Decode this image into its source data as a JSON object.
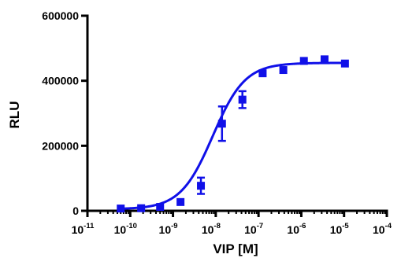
{
  "chart_data": {
    "type": "scatter",
    "xlabel": "VIP [M]",
    "ylabel": "RLU",
    "x_scale": "log10",
    "xlim": [
      1e-11,
      0.0001
    ],
    "ylim": [
      0,
      600000
    ],
    "x_ticks": [
      {
        "base": "10",
        "exp": "-11"
      },
      {
        "base": "10",
        "exp": "-10"
      },
      {
        "base": "10",
        "exp": "-9"
      },
      {
        "base": "10",
        "exp": "-8"
      },
      {
        "base": "10",
        "exp": "-7"
      },
      {
        "base": "10",
        "exp": "-6"
      },
      {
        "base": "10",
        "exp": "-5"
      },
      {
        "base": "10",
        "exp": "-4"
      }
    ],
    "y_ticks": [
      "0",
      "200000",
      "400000",
      "600000"
    ],
    "series_color": "#1010e8",
    "points": [
      {
        "x": 6e-11,
        "y": 7000,
        "err": 0
      },
      {
        "x": 1.8e-10,
        "y": 8000,
        "err": 0
      },
      {
        "x": 5e-10,
        "y": 12000,
        "err": 0
      },
      {
        "x": 1.5e-09,
        "y": 27000,
        "err": 0
      },
      {
        "x": 4.5e-09,
        "y": 77000,
        "err": 25000
      },
      {
        "x": 1.4e-08,
        "y": 268000,
        "err": 53000
      },
      {
        "x": 4.2e-08,
        "y": 342000,
        "err": 26000
      },
      {
        "x": 1.25e-07,
        "y": 423000,
        "err": 0
      },
      {
        "x": 3.8e-07,
        "y": 433000,
        "err": 0
      },
      {
        "x": 1.15e-06,
        "y": 461000,
        "err": 0
      },
      {
        "x": 3.5e-06,
        "y": 466000,
        "err": 0
      },
      {
        "x": 1.05e-05,
        "y": 453000,
        "err": 0
      }
    ],
    "fit": {
      "bottom": 5000,
      "top": 455000,
      "log_ec50": -8.07,
      "hill": 1.15
    }
  }
}
